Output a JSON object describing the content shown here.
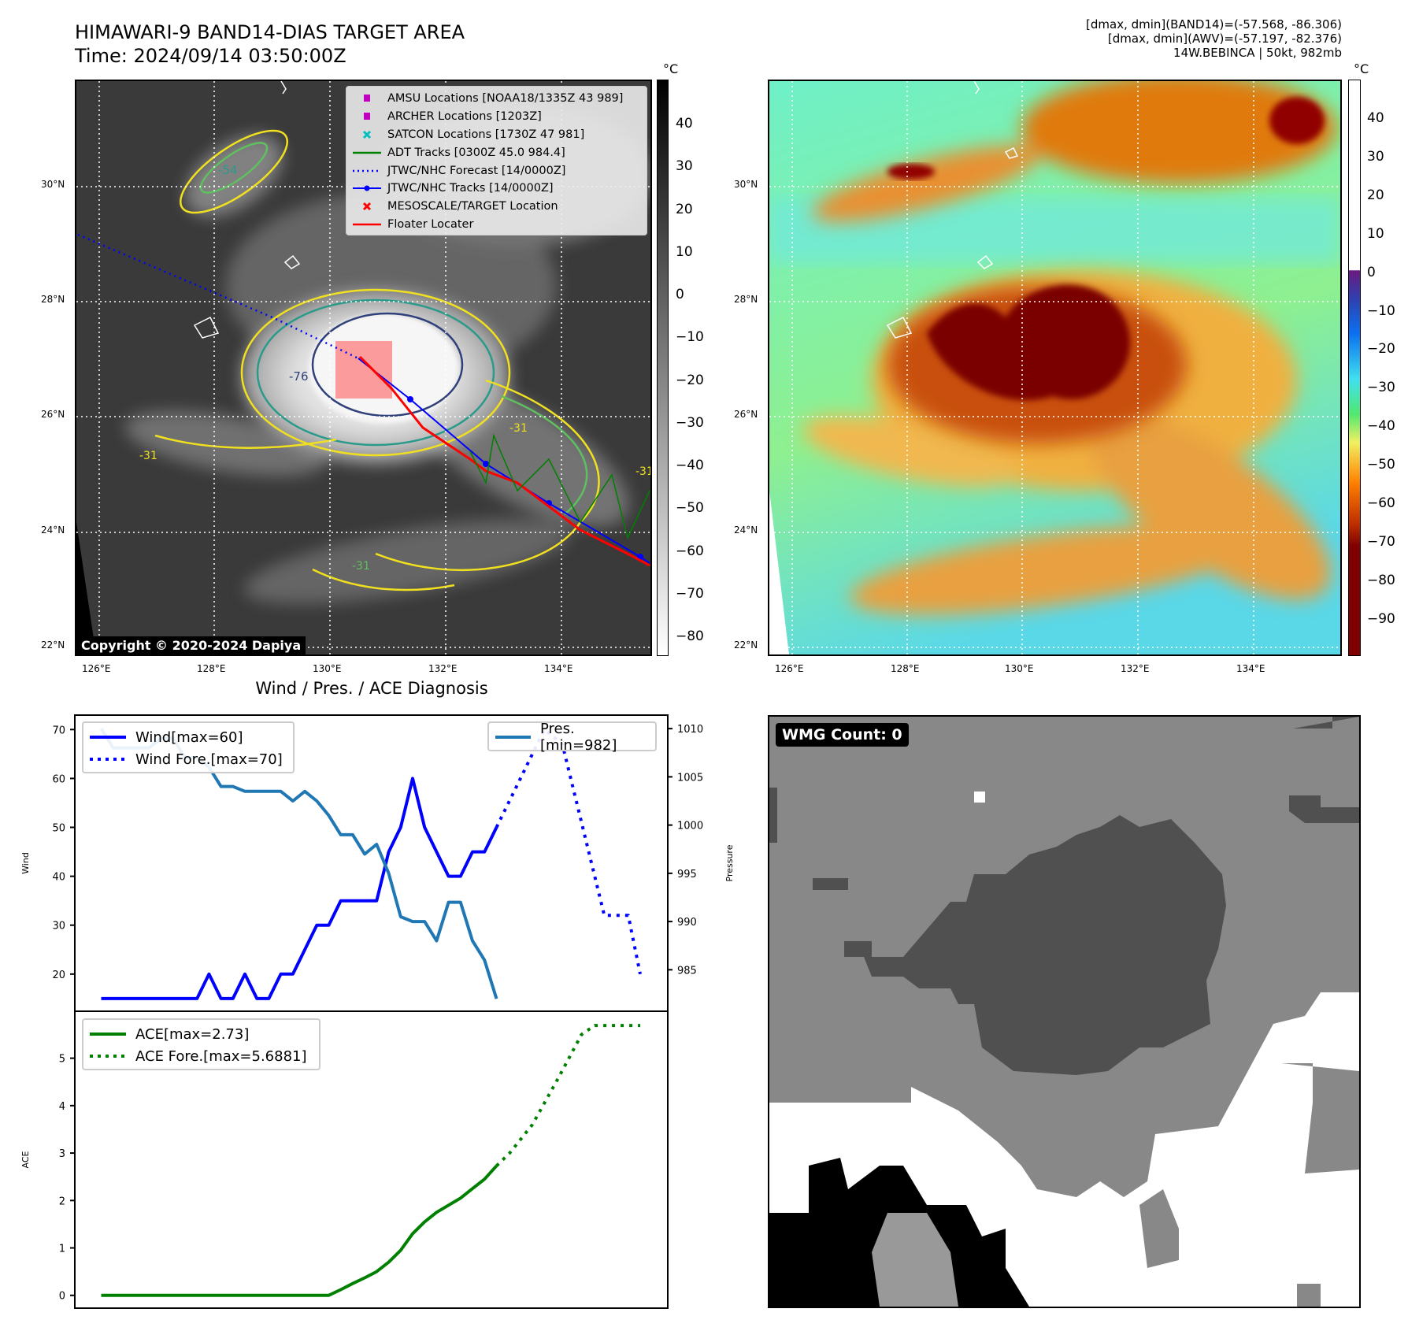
{
  "header": {
    "title_line1": "HIMAWARI-9 BAND14-DIAS TARGET AREA",
    "title_line2": "Time: 2024/09/14 03:50:00Z",
    "info_line1": "[dmax, dmin](BAND14)=(-57.568, -86.306)",
    "info_line2": "[dmax, dmin](AWV)=(-57.197, -82.376)",
    "info_line3": "14W.BEBINCA | 50kt, 982mb"
  },
  "maps": {
    "lat_labels": [
      "30°N",
      "28°N",
      "26°N",
      "24°N",
      "22°N"
    ],
    "lon_labels": [
      "126°E",
      "128°E",
      "130°E",
      "132°E",
      "134°E"
    ],
    "unit": "°C",
    "left_colorbar_ticks": [
      "40",
      "30",
      "20",
      "10",
      "0",
      "−10",
      "−20",
      "−30",
      "−40",
      "−50",
      "−60",
      "−70",
      "−80"
    ],
    "right_colorbar_ticks": [
      "40",
      "30",
      "20",
      "10",
      "0",
      "−10",
      "−20",
      "−30",
      "−40",
      "−50",
      "−60",
      "−70",
      "−80",
      "−90"
    ],
    "contour_labels": [
      "-54",
      "-76",
      "-31",
      "-31",
      "-31",
      "-31"
    ],
    "copyright": "Copyright © 2020-2024 Dapiya",
    "legend": [
      {
        "label": "AMSU Locations [NOAA18/1335Z 43 989]",
        "icon": "square-marker",
        "color": "#c000c0"
      },
      {
        "label": "ARCHER Locations [1203Z]",
        "icon": "square-marker",
        "color": "#c000c0"
      },
      {
        "label": "SATCON Locations [1730Z 47 981]",
        "icon": "x-marker",
        "color": "#00bfbf"
      },
      {
        "label": "ADT Tracks [0300Z 45.0 984.4]",
        "icon": "solid-line",
        "color": "#008000"
      },
      {
        "label": "JTWC/NHC Forecast [14/0000Z]",
        "icon": "dotted-line",
        "color": "#0000ff"
      },
      {
        "label": "JTWC/NHC Tracks [14/0000Z]",
        "icon": "line-dot",
        "color": "#0000ff"
      },
      {
        "label": "MESOSCALE/TARGET Location",
        "icon": "x-marker",
        "color": "#ff0000"
      },
      {
        "label": "Floater Locater",
        "icon": "solid-line",
        "color": "#ff0000"
      }
    ],
    "wmg_count": "WMG Count: 0"
  },
  "chart_data": [
    {
      "type": "line",
      "title": "Wind / Pres. / ACE Diagnosis",
      "ylabel": "Wind",
      "ylabel_right": "Pressure",
      "ylim": [
        12.4,
        72.95
      ],
      "ylim_right": [
        980.7,
        1011.4
      ],
      "xlim": [
        -2.2,
        47.3
      ],
      "yticks": [
        20,
        30,
        40,
        50,
        60,
        70
      ],
      "yticks_right": [
        985,
        990,
        995,
        1000,
        1005,
        1010
      ],
      "series": [
        {
          "name": "Wind[max=60]",
          "color": "#0000ff",
          "style": "solid",
          "x": [
            0,
            1,
            2,
            3,
            4,
            5,
            6,
            7,
            8,
            9,
            10,
            11,
            12,
            13,
            14,
            15,
            16,
            17,
            18,
            19,
            20,
            21,
            22,
            23,
            24,
            25,
            26,
            27,
            28,
            29,
            30,
            31,
            32,
            33
          ],
          "values": [
            15,
            15,
            15,
            15,
            15,
            15,
            15,
            15,
            15,
            20,
            15,
            15,
            20,
            15,
            15,
            20,
            20,
            25,
            30,
            30,
            35,
            35,
            35,
            35,
            45,
            50,
            60,
            50,
            45,
            40,
            40,
            45,
            45,
            50
          ]
        },
        {
          "name": "Wind Fore.[max=70]",
          "color": "#0000ff",
          "style": "dotted",
          "x": [
            33,
            37,
            38.5,
            42,
            44,
            45
          ],
          "values": [
            50,
            70,
            67,
            32,
            32,
            20
          ]
        },
        {
          "name": "Pres.[min=982]",
          "color": "#1f77b4",
          "style": "solid",
          "axis": "right",
          "x": [
            0,
            1,
            2,
            3,
            4,
            5,
            6,
            7,
            8,
            9,
            10,
            11,
            12,
            13,
            14,
            15,
            16,
            17,
            18,
            19,
            20,
            21,
            22,
            23,
            24,
            25,
            26,
            27,
            28,
            29,
            30,
            31,
            32,
            33
          ],
          "values": [
            1010,
            1008,
            1008,
            1008,
            1008,
            1009,
            1009,
            1007,
            1007,
            1006,
            1004,
            1004,
            1003.5,
            1003.5,
            1003.5,
            1003.5,
            1002.5,
            1003.5,
            1002.5,
            1001,
            999,
            999,
            997,
            998,
            995,
            990.5,
            990,
            990,
            988,
            992,
            992,
            988,
            986,
            982
          ]
        }
      ]
    },
    {
      "type": "line",
      "ylabel": "ACE",
      "ylim": [
        -0.27,
        5.99
      ],
      "xlim": [
        -2.2,
        47.3
      ],
      "yticks": [
        0,
        1,
        2,
        3,
        4,
        5
      ],
      "series": [
        {
          "name": "ACE[max=2.73]",
          "color": "#008000",
          "style": "solid",
          "x": [
            0,
            19,
            20,
            21,
            22,
            23,
            24,
            25,
            26,
            27,
            28,
            29,
            30,
            31,
            32,
            33
          ],
          "values": [
            0,
            0,
            0.12,
            0.25,
            0.37,
            0.5,
            0.7,
            0.95,
            1.3,
            1.55,
            1.75,
            1.9,
            2.05,
            2.25,
            2.45,
            2.73
          ]
        },
        {
          "name": "ACE Fore.[max=5.6881]",
          "color": "#008000",
          "style": "dotted",
          "x": [
            33,
            34.1,
            36,
            38.2,
            40.1,
            41.2,
            45
          ],
          "values": [
            2.73,
            3.0,
            3.6,
            4.6,
            5.5,
            5.69,
            5.69
          ]
        }
      ]
    }
  ]
}
